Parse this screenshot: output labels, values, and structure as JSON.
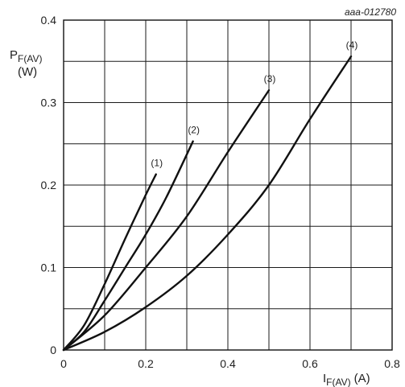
{
  "figure_ref": "aaa-012780",
  "chart_data": {
    "type": "line",
    "ylabel": {
      "main": "P",
      "sub": "F(AV)",
      "unit": "(W)"
    },
    "xlabel": {
      "main": "I",
      "sub": "F(AV)",
      "unit": "(A)"
    },
    "xlim": [
      0,
      0.8
    ],
    "ylim": [
      0,
      0.4
    ],
    "x_ticks": [
      "0",
      "0.2",
      "0.4",
      "0.6",
      "0.8"
    ],
    "y_ticks": [
      "0",
      "0.1",
      "0.2",
      "0.3",
      "0.4"
    ],
    "x_tick_values": [
      0,
      0.2,
      0.4,
      0.6,
      0.8
    ],
    "y_tick_values": [
      0,
      0.1,
      0.2,
      0.3,
      0.4
    ],
    "grid": true,
    "grid_step": {
      "x": 0.1,
      "y": 0.05
    },
    "series": [
      {
        "name": "(1)",
        "x": [
          0,
          0.05,
          0.1,
          0.15,
          0.2,
          0.225
        ],
        "y": [
          0,
          0.03,
          0.08,
          0.135,
          0.188,
          0.213
        ]
      },
      {
        "name": "(2)",
        "x": [
          0,
          0.05,
          0.1,
          0.15,
          0.2,
          0.25,
          0.315
        ],
        "y": [
          0,
          0.022,
          0.06,
          0.1,
          0.14,
          0.185,
          0.253
        ]
      },
      {
        "name": "(3)",
        "x": [
          0,
          0.1,
          0.2,
          0.3,
          0.4,
          0.5
        ],
        "y": [
          0,
          0.042,
          0.1,
          0.162,
          0.24,
          0.315
        ]
      },
      {
        "name": "(4)",
        "x": [
          0,
          0.1,
          0.2,
          0.3,
          0.4,
          0.5,
          0.6,
          0.7
        ],
        "y": [
          0,
          0.022,
          0.052,
          0.09,
          0.14,
          0.2,
          0.28,
          0.356
        ]
      }
    ]
  }
}
